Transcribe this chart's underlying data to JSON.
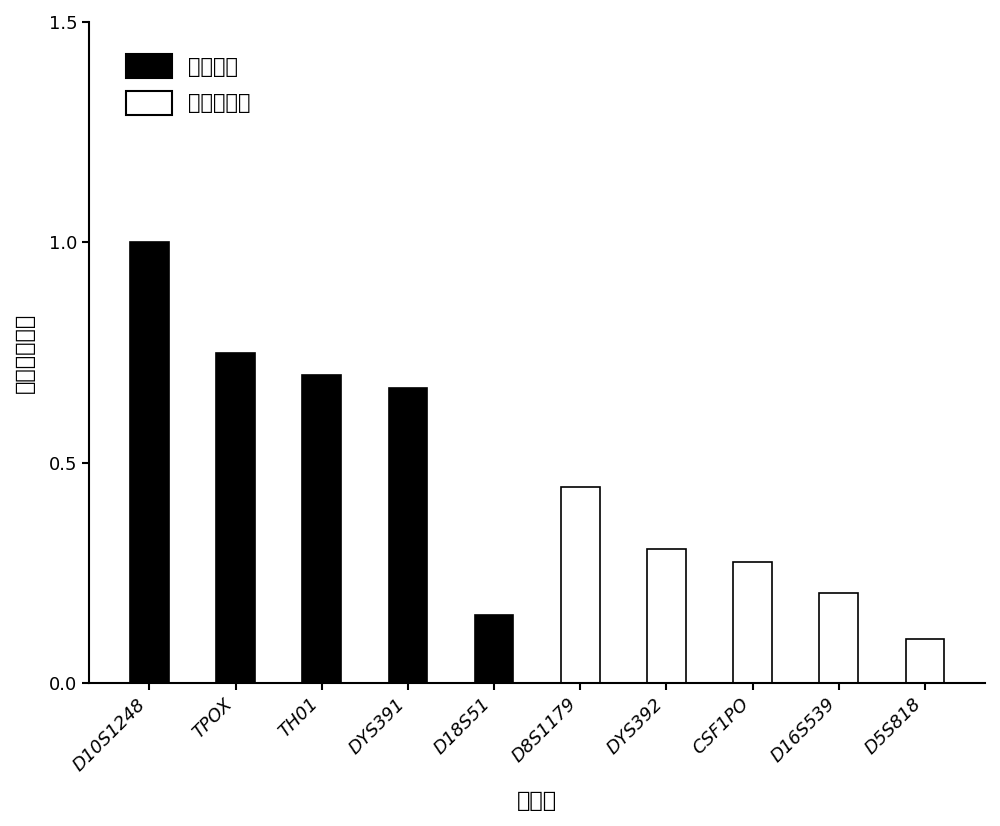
{
  "categories": [
    "D10S1248",
    "TPOX",
    "TH01",
    "DYS391",
    "D18S51",
    "D8S1179",
    "DYS392",
    "CSF1PO",
    "D16S539",
    "D5S818"
  ],
  "values": [
    1.0,
    0.75,
    0.7,
    0.67,
    0.155,
    0.445,
    0.305,
    0.275,
    0.205,
    0.1
  ],
  "colors": [
    "#000000",
    "#000000",
    "#000000",
    "#000000",
    "#000000",
    "#ffffff",
    "#ffffff",
    "#ffffff",
    "#ffffff",
    "#ffffff"
  ],
  "edgecolors": [
    "#000000",
    "#000000",
    "#000000",
    "#000000",
    "#000000",
    "#000000",
    "#000000",
    "#000000",
    "#000000",
    "#000000"
  ],
  "xlabel": "基因座",
  "ylabel": "基因座检出率",
  "ylim": [
    0,
    1.5
  ],
  "yticks": [
    0.0,
    0.5,
    1.0,
    1.5
  ],
  "legend_labels": [
    "核小体组",
    "非核小体组"
  ],
  "legend_colors": [
    "#000000",
    "#ffffff"
  ],
  "bar_width": 0.45,
  "label_fontsize": 16,
  "tick_fontsize": 13,
  "legend_fontsize": 15,
  "background_color": "#ffffff",
  "figure_facecolor": "#ffffff"
}
